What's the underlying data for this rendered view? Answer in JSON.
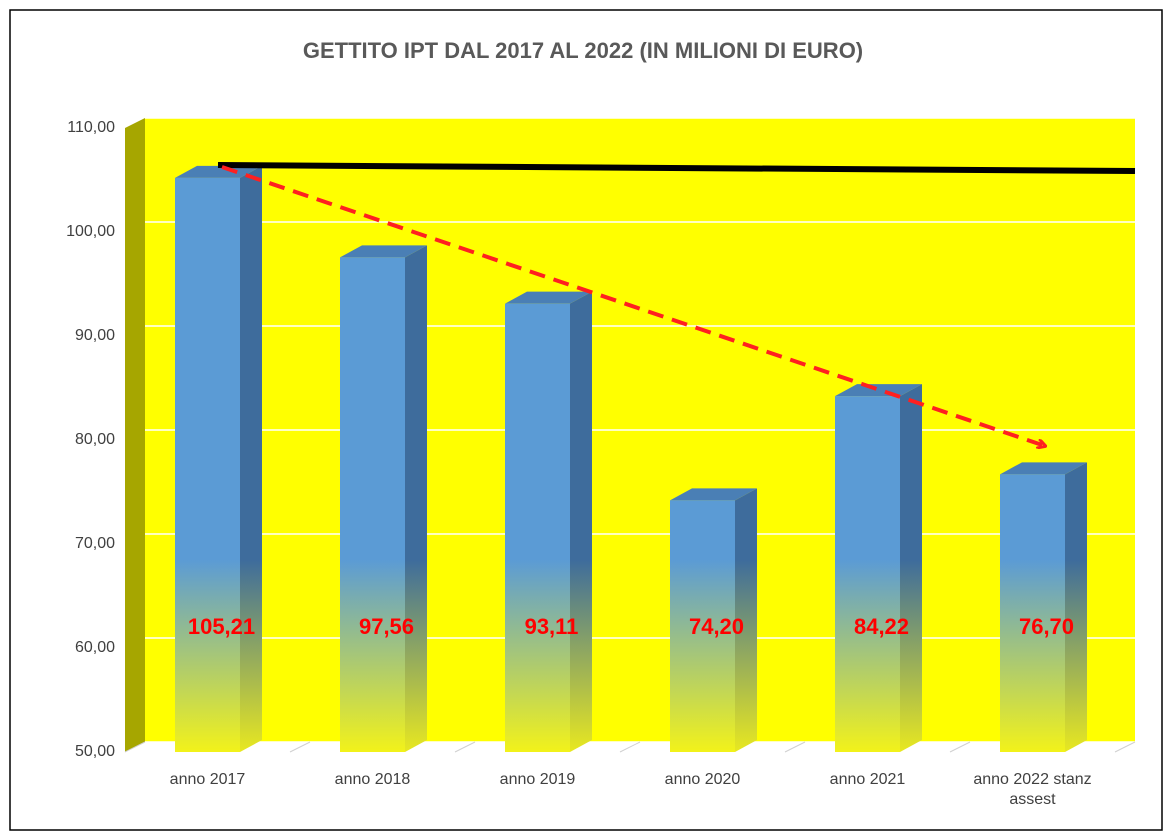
{
  "chart_data": {
    "type": "bar3d",
    "title": "GETTITO IPT DAL 2017 AL 2022 (IN MILIONI DI EURO)",
    "categories": [
      "anno 2017",
      "anno 2018",
      "anno 2019",
      "anno 2020",
      "anno 2021",
      "anno 2022 stanz assest"
    ],
    "values": [
      105.21,
      97.56,
      93.11,
      74.2,
      84.22,
      76.7
    ],
    "value_labels": [
      "105,21",
      "97,56",
      "93,11",
      "74,20",
      "84,22",
      "76,70"
    ],
    "color": "#5b9bd5",
    "ylim": [
      50,
      110
    ],
    "yticks": [
      {
        "value": 50,
        "label": "50,00"
      },
      {
        "value": 60,
        "label": "60,00"
      },
      {
        "value": 70,
        "label": "70,00"
      },
      {
        "value": 80,
        "label": "80,00"
      },
      {
        "value": 90,
        "label": "90,00"
      },
      {
        "value": 100,
        "label": "100,00"
      },
      {
        "value": 110,
        "label": "110,00"
      }
    ],
    "grid": true
  }
}
